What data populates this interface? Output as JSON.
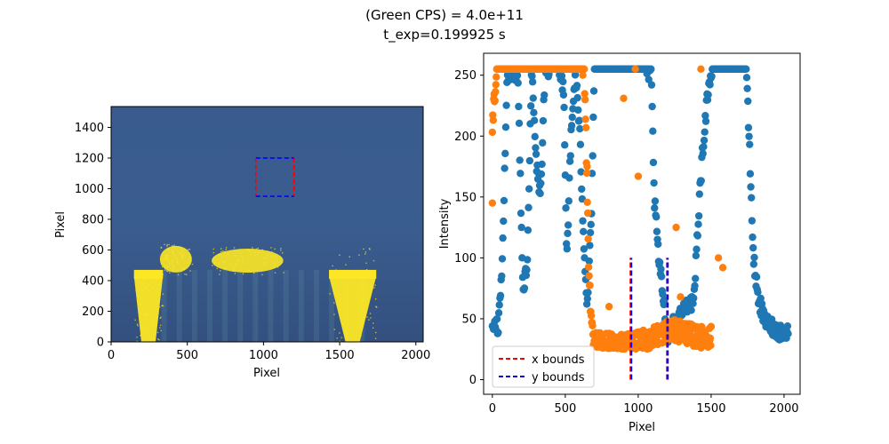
{
  "figure": {
    "title_line1": "(Green CPS) = 4.0e+11",
    "title_line2": "t_exp=0.199925 s"
  },
  "colors": {
    "image_bg": "#3b5a8f",
    "image_bright": "#fde725",
    "roi_red": "#ff0000",
    "roi_blue": "#0000ff",
    "series_blue": "#1f77b4",
    "series_orange": "#ff7f0e"
  },
  "chart_data": [
    {
      "type": "heatmap",
      "title": "",
      "xlabel": "Pixel",
      "ylabel": "Pixel",
      "xlim": [
        0,
        2048
      ],
      "ylim": [
        0,
        1536
      ],
      "xticks": [
        0,
        500,
        1000,
        1500,
        2000
      ],
      "yticks": [
        0,
        200,
        400,
        600,
        800,
        1000,
        1200,
        1400
      ],
      "colormap": "viridis",
      "bright_regions": [
        {
          "x": [
            150,
            340
          ],
          "y": [
            0,
            480
          ]
        },
        {
          "x": [
            320,
            530
          ],
          "y": [
            440,
            640
          ]
        },
        {
          "x": [
            660,
            1130
          ],
          "y": [
            440,
            620
          ]
        },
        {
          "x": [
            1430,
            1740
          ],
          "y": [
            0,
            640
          ]
        }
      ],
      "roi_box": {
        "x": [
          950,
          1200
        ],
        "y": [
          950,
          1200
        ]
      }
    },
    {
      "type": "scatter",
      "title": "",
      "xlabel": "Pixel",
      "ylabel": "Intensity",
      "xlim": [
        -60,
        2110
      ],
      "ylim": [
        -12,
        268
      ],
      "xticks": [
        0,
        500,
        1000,
        1500,
        2000
      ],
      "yticks": [
        0,
        50,
        100,
        150,
        200,
        250
      ],
      "series": [
        {
          "color": "#1f77b4",
          "profile": [
            [
              0,
              40
            ],
            [
              40,
              45
            ],
            [
              70,
              100
            ],
            [
              100,
              245
            ],
            [
              140,
              255
            ],
            [
              175,
              250
            ],
            [
              210,
              70
            ],
            [
              240,
              100
            ],
            [
              270,
              255
            ],
            [
              300,
              180
            ],
            [
              330,
              150
            ],
            [
              360,
              250
            ],
            [
              400,
              255
            ],
            [
              450,
              255
            ],
            [
              490,
              240
            ],
            [
              510,
              100
            ],
            [
              540,
              200
            ],
            [
              570,
              255
            ],
            [
              600,
              200
            ],
            [
              625,
              120
            ],
            [
              650,
              60
            ],
            [
              680,
              140
            ],
            [
              700,
              255
            ],
            [
              1000,
              255
            ],
            [
              1050,
              255
            ],
            [
              1090,
              250
            ],
            [
              1110,
              150
            ],
            [
              1140,
              100
            ],
            [
              1180,
              60
            ],
            [
              1200,
              35
            ],
            [
              1240,
              45
            ],
            [
              1300,
              55
            ],
            [
              1350,
              65
            ],
            [
              1380,
              60
            ],
            [
              1420,
              150
            ],
            [
              1450,
              200
            ],
            [
              1480,
              240
            ],
            [
              1510,
              255
            ],
            [
              1550,
              255
            ],
            [
              1740,
              255
            ],
            [
              1760,
              200
            ],
            [
              1790,
              100
            ],
            [
              1820,
              70
            ],
            [
              1860,
              50
            ],
            [
              1900,
              45
            ],
            [
              1960,
              40
            ],
            [
              2000,
              38
            ],
            [
              2030,
              40
            ]
          ]
        },
        {
          "color": "#ff7f0e",
          "profile": [
            [
              0,
              210
            ],
            [
              30,
              255
            ],
            [
              100,
              255
            ],
            [
              600,
              255
            ],
            [
              630,
              255
            ],
            [
              640,
              210
            ],
            [
              660,
              100
            ],
            [
              680,
              40
            ],
            [
              700,
              30
            ],
            [
              800,
              30
            ],
            [
              1000,
              30
            ],
            [
              1100,
              35
            ],
            [
              1200,
              40
            ],
            [
              1300,
              40
            ],
            [
              1400,
              35
            ],
            [
              1500,
              35
            ]
          ],
          "outliers": [
            [
              0,
              145
            ],
            [
              900,
              231
            ],
            [
              1000,
              167
            ],
            [
              980,
              255
            ],
            [
              1430,
              255
            ],
            [
              1260,
              125
            ],
            [
              1290,
              68
            ],
            [
              1550,
              100
            ],
            [
              1580,
              92
            ],
            [
              800,
              60
            ],
            [
              650,
              175
            ],
            [
              620,
              250
            ]
          ]
        }
      ],
      "bounds_lines": [
        {
          "label": "x bounds",
          "color": "#ff0000",
          "x": [
            950,
            1200
          ],
          "y": [
            0,
            100
          ]
        },
        {
          "label": "y bounds",
          "color": "#0000ff",
          "x": [
            950,
            1200
          ],
          "y": [
            0,
            100
          ]
        }
      ],
      "legend": {
        "placement": "lower-left",
        "entries": [
          "x bounds",
          "y bounds"
        ]
      }
    }
  ]
}
